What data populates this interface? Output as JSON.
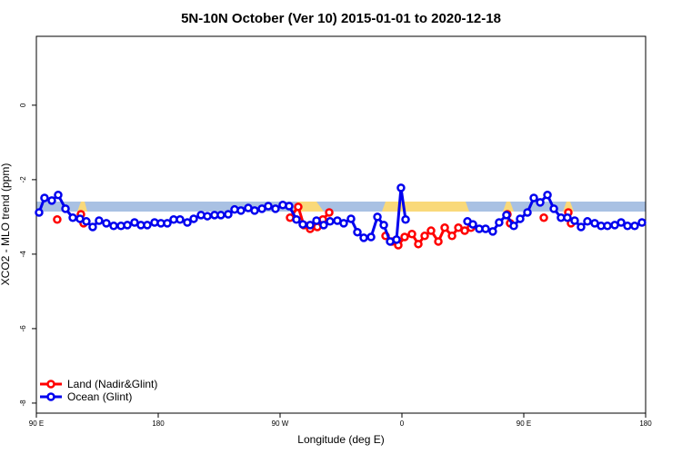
{
  "chart_data": {
    "type": "line",
    "title": "5N-10N October (Ver 10)   2015-01-01 to 2020-12-18",
    "x_label": "Longitude (deg E)",
    "y_label": "XCO2 - MLO trend (ppm)",
    "xlim": [
      90,
      540
    ],
    "ylim": [
      -8.27,
      1.85
    ],
    "xticks": [
      {
        "value": 90,
        "label": "90 E"
      },
      180,
      {
        "value": 270,
        "label": "90 W"
      },
      {
        "value": 360,
        "label": "0"
      },
      {
        "value": 450,
        "label": "90 E"
      },
      {
        "value": 540,
        "label": "180"
      }
    ],
    "yticks": [
      0,
      -2,
      -4,
      -6,
      -8
    ],
    "legend": "bottom-left",
    "series": [
      {
        "name": "Land (Nadir&Glint)",
        "color": "#ff0000",
        "x": [
          105.4,
          null,
          122.9,
          124.9,
          null,
          277.4,
          283.4,
          287.5,
          292.2,
          297.5,
          301.6,
          306.3,
          null,
          347.9,
          352.6,
          357.3,
          362.0,
          367.4,
          372.1,
          376.8,
          381.5,
          386.9,
          391.6,
          397.0,
          401.7,
          406.4,
          411.0,
          null,
          437.9,
          439.9,
          null,
          464.8,
          null,
          482.9,
          484.9
        ],
        "values": [
          -3.07,
          null,
          -2.93,
          -3.17,
          null,
          -3.02,
          -2.73,
          -3.22,
          -3.32,
          -3.27,
          -3.07,
          -2.88,
          null,
          -3.51,
          -3.66,
          -3.76,
          -3.54,
          -3.46,
          -3.73,
          -3.51,
          -3.37,
          -3.66,
          -3.29,
          -3.51,
          -3.29,
          -3.37,
          -3.29,
          null,
          -2.93,
          -3.17,
          null,
          -3.02,
          null,
          -2.88,
          -3.17
        ]
      },
      {
        "name": "Ocean (Glint)",
        "color": "#0000ee",
        "x": [
          92.0,
          96.0,
          101.4,
          106.1,
          111.5,
          116.9,
          122.2,
          126.9,
          131.6,
          136.3,
          141.7,
          147.1,
          152.5,
          157.2,
          162.5,
          167.2,
          171.9,
          177.3,
          182.0,
          186.7,
          191.4,
          196.1,
          201.5,
          206.2,
          211.6,
          216.3,
          221.6,
          226.3,
          231.7,
          236.4,
          241.1,
          246.5,
          251.2,
          256.6,
          261.3,
          266.6,
          272.0,
          276.7,
          282.1,
          286.8,
          292.2,
          296.9,
          302.2,
          306.9,
          312.3,
          317.0,
          322.4,
          327.1,
          331.8,
          337.2,
          341.9,
          346.6,
          351.3,
          356.0,
          359.3,
          362.7,
          null,
          408.4,
          412.4,
          417.1,
          421.8,
          427.1,
          431.8,
          437.2,
          442.6,
          447.3,
          452.7,
          457.4,
          462.1,
          467.5,
          472.2,
          477.5,
          482.2,
          487.6,
          492.3,
          497.0,
          502.4,
          507.1,
          511.8,
          517.2,
          521.9,
          526.6,
          531.9,
          537.3
        ],
        "values": [
          -2.88,
          -2.49,
          -2.56,
          -2.41,
          -2.78,
          -3.02,
          -3.05,
          -3.12,
          -3.27,
          -3.1,
          -3.17,
          -3.24,
          -3.24,
          -3.22,
          -3.15,
          -3.22,
          -3.22,
          -3.15,
          -3.17,
          -3.17,
          -3.07,
          -3.07,
          -3.15,
          -3.05,
          -2.95,
          -2.98,
          -2.95,
          -2.95,
          -2.93,
          -2.8,
          -2.83,
          -2.76,
          -2.83,
          -2.78,
          -2.71,
          -2.78,
          -2.68,
          -2.71,
          -3.07,
          -3.2,
          -3.22,
          -3.1,
          -3.22,
          -3.12,
          -3.1,
          -3.17,
          -3.05,
          -3.41,
          -3.56,
          -3.54,
          -3.0,
          -3.22,
          -3.66,
          -3.61,
          -2.22,
          -3.07,
          null,
          -3.12,
          -3.2,
          -3.32,
          -3.32,
          -3.39,
          -3.15,
          -2.95,
          -3.24,
          -3.05,
          -2.88,
          -2.49,
          -2.61,
          -2.41,
          -2.78,
          -3.02,
          -3.02,
          -3.1,
          -3.27,
          -3.12,
          -3.17,
          -3.24,
          -3.24,
          -3.22,
          -3.15,
          -3.24,
          -3.24,
          -3.15
        ]
      }
    ]
  }
}
